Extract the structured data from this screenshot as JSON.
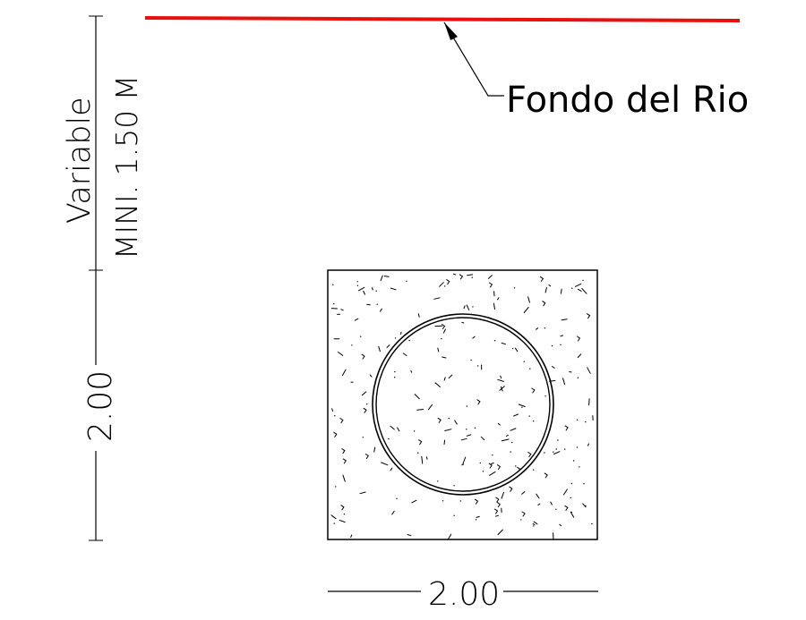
{
  "drawing": {
    "river_label": "Fondo del Rio",
    "depth_label_line1": "Variable",
    "depth_label_line2": "MINI. 1.50 M",
    "height_dim": "2.00",
    "width_dim": "2.00",
    "colors": {
      "river_line": "#e8100f",
      "ink": "#000000",
      "background": "#ffffff"
    }
  }
}
